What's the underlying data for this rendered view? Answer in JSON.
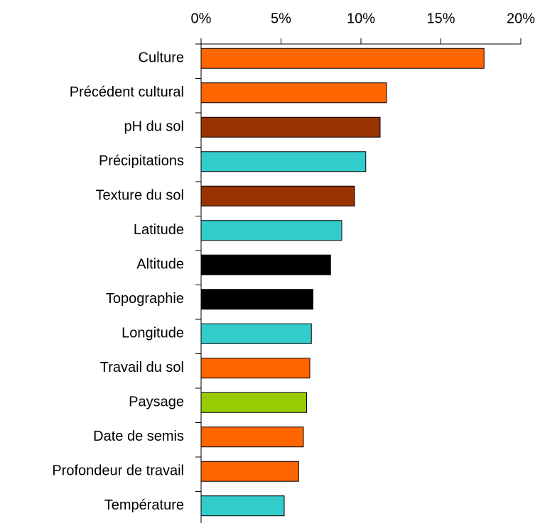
{
  "chart_data": {
    "type": "bar",
    "orientation": "horizontal",
    "categories": [
      "Culture",
      "Précédent cultural",
      "pH du sol",
      "Précipitations",
      "Texture du sol",
      "Latitude",
      "Altitude",
      "Topographie",
      "Longitude",
      "Travail du sol",
      "Paysage",
      "Date de semis",
      "Profondeur de travail",
      "Température"
    ],
    "values": [
      17.7,
      11.6,
      11.2,
      10.3,
      9.6,
      8.8,
      8.1,
      7.0,
      6.9,
      6.8,
      6.6,
      6.4,
      6.1,
      5.2
    ],
    "colors": [
      "#ff6600",
      "#ff6600",
      "#993300",
      "#33cccc",
      "#993300",
      "#33cccc",
      "#000000",
      "#000000",
      "#33cccc",
      "#ff6600",
      "#99cc00",
      "#ff6600",
      "#ff6600",
      "#33cccc"
    ],
    "xlim": [
      0,
      20
    ],
    "xticks": [
      {
        "value": 0,
        "label": "0%"
      },
      {
        "value": 5,
        "label": "5%"
      },
      {
        "value": 10,
        "label": "10%"
      },
      {
        "value": 15,
        "label": "15%"
      },
      {
        "value": 20,
        "label": "20%"
      }
    ],
    "grid": false
  }
}
